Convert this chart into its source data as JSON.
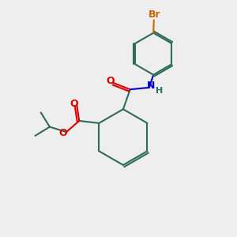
{
  "bg_color": "#eeeeee",
  "bond_color": "#2d6b5a",
  "oxygen_color": "#dd0000",
  "nitrogen_color": "#0000cc",
  "bromine_color": "#cc6600",
  "line_width": 1.5,
  "fig_size": [
    3.0,
    3.0
  ],
  "dpi": 100,
  "xlim": [
    0,
    10
  ],
  "ylim": [
    0,
    10
  ]
}
